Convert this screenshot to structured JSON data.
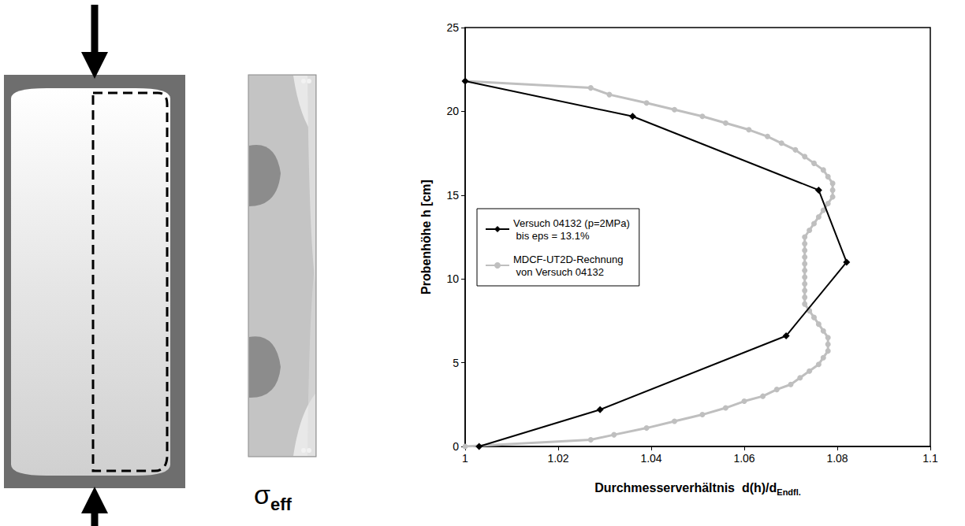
{
  "figure": {
    "contour_label": {
      "text": "σ",
      "subscript": "eff"
    }
  },
  "chart_data": {
    "type": "line",
    "x_label": "Durchmesserverhältnis  d(h)/d",
    "x_label_subscript": "Endfl.",
    "y_label": "Probenhöhe h [cm]",
    "xlim": [
      1,
      1.1
    ],
    "xticks": [
      1,
      1.02,
      1.04,
      1.06,
      1.08,
      1.1
    ],
    "ylim": [
      0,
      25
    ],
    "yticks": [
      0,
      5,
      10,
      15,
      20,
      25
    ],
    "grid": false,
    "legend": "left",
    "series": [
      {
        "name": "Versuch 04132 (p=2MPa)\n bis eps = 13.1%",
        "color": "#000000",
        "marker": "diamond",
        "line_style": "solid",
        "x": [
          1.003,
          1.029,
          1.069,
          1.082,
          1.076,
          1.036,
          1.0
        ],
        "values": [
          0,
          2.2,
          6.6,
          11.0,
          15.3,
          19.7,
          21.8
        ]
      },
      {
        "name": "MDCF-UT2D-Rechnung\n von Versuch 04132",
        "color": "#bfbfbf",
        "marker": "circle",
        "line_style": "solid",
        "x": [
          1.0,
          1.027,
          1.032,
          1.039,
          1.045,
          1.051,
          1.056,
          1.06,
          1.064,
          1.067,
          1.07,
          1.072,
          1.074,
          1.076,
          1.077,
          1.078,
          1.078,
          1.078,
          1.077,
          1.076,
          1.075,
          1.074,
          1.073,
          1.073,
          1.073,
          1.073,
          1.073,
          1.073,
          1.073,
          1.073,
          1.073,
          1.073,
          1.073,
          1.074,
          1.075,
          1.076,
          1.077,
          1.078,
          1.079,
          1.079,
          1.079,
          1.078,
          1.077,
          1.075,
          1.073,
          1.071,
          1.068,
          1.065,
          1.061,
          1.056,
          1.051,
          1.045,
          1.039,
          1.031,
          1.027,
          1.0
        ],
        "values": [
          0,
          0.4,
          0.7,
          1.1,
          1.5,
          1.9,
          2.3,
          2.7,
          3.0,
          3.4,
          3.7,
          4.1,
          4.5,
          4.9,
          5.3,
          5.7,
          6.1,
          6.5,
          6.9,
          7.3,
          7.7,
          8.1,
          8.5,
          8.9,
          9.3,
          9.7,
          10.1,
          10.5,
          10.9,
          11.3,
          11.7,
          12.1,
          12.5,
          12.9,
          13.3,
          13.7,
          14.1,
          14.5,
          14.9,
          15.3,
          15.7,
          16.1,
          16.5,
          16.9,
          17.3,
          17.7,
          18.1,
          18.5,
          18.9,
          19.3,
          19.7,
          20.1,
          20.5,
          21.0,
          21.4,
          21.8
        ]
      }
    ]
  }
}
